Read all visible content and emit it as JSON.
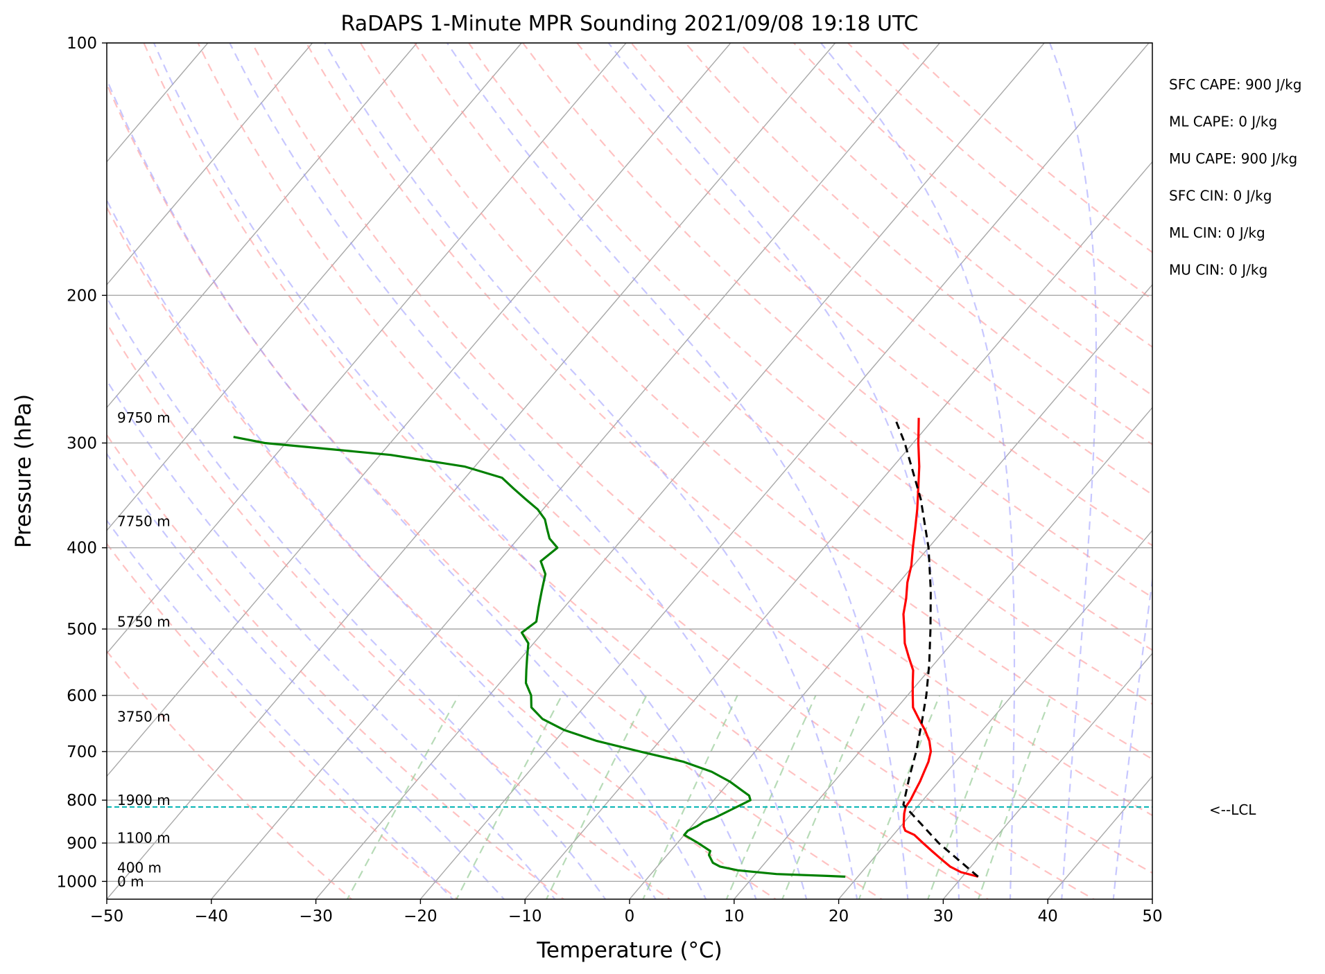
{
  "chart_data": {
    "type": "line",
    "title": "RaDAPS 1-Minute MPR Sounding 2021/09/08 19:18 UTC",
    "xlabel": "Temperature (°C)",
    "ylabel": "Pressure (hPa)",
    "xlim": [
      -50,
      50
    ],
    "ylim": [
      1050,
      100
    ],
    "y_log_scale": true,
    "skew_t": true,
    "x_ticks": [
      -50,
      -40,
      -30,
      -20,
      -10,
      0,
      10,
      20,
      30,
      40,
      50
    ],
    "x_tick_labels": [
      "−50",
      "−40",
      "−30",
      "−20",
      "−10",
      "0",
      "10",
      "20",
      "30",
      "40",
      "50"
    ],
    "y_ticks": [
      1000,
      900,
      800,
      700,
      600,
      500,
      400,
      300,
      200,
      100
    ],
    "y_tick_labels": [
      "1000",
      "900",
      "800",
      "700",
      "600",
      "500",
      "400",
      "300",
      "200",
      "100"
    ],
    "grid": true,
    "series": [
      {
        "color": "#ff0000",
        "pressure": [
          987,
          975,
          960,
          940,
          920,
          900,
          880,
          870,
          860,
          845,
          830,
          815,
          800,
          780,
          760,
          740,
          720,
          700,
          680,
          660,
          640,
          620,
          600,
          580,
          560,
          540,
          520,
          500,
          480,
          460,
          440,
          420,
          400,
          380,
          360,
          340,
          320,
          300,
          280
        ],
        "temperature": [
          31.5,
          29.5,
          28.0,
          26.5,
          25.0,
          23.5,
          22.0,
          20.8,
          20.3,
          19.8,
          19.3,
          18.9,
          18.8,
          18.5,
          18.2,
          17.8,
          17.4,
          16.8,
          15.8,
          14.5,
          13.0,
          11.5,
          10.5,
          9.5,
          8.5,
          7.0,
          5.5,
          4.3,
          3.0,
          2.0,
          0.8,
          -0.2,
          -1.5,
          -2.8,
          -4.2,
          -5.8,
          -7.5,
          -9.5,
          -11.5
        ]
      },
      {
        "color": "#008000",
        "pressure": [
          987,
          985,
          980,
          970,
          960,
          950,
          940,
          930,
          920,
          900,
          880,
          870,
          860,
          850,
          840,
          830,
          820,
          810,
          800,
          790,
          780,
          760,
          740,
          720,
          700,
          680,
          660,
          640,
          620,
          600,
          580,
          560,
          540,
          520,
          505,
          490,
          470,
          450,
          430,
          415,
          400,
          390,
          380,
          370,
          360,
          350,
          340,
          330,
          320,
          310,
          300,
          295
        ],
        "dewpoint": [
          18.8,
          17.0,
          12.0,
          8.0,
          6.0,
          5.0,
          4.5,
          4.0,
          3.8,
          2.0,
          0.0,
          0.0,
          0.5,
          0.8,
          1.5,
          2.0,
          2.5,
          3.0,
          3.5,
          3.0,
          2.0,
          0.0,
          -2.5,
          -6.0,
          -11.0,
          -16.0,
          -20.0,
          -23.0,
          -25.0,
          -26.0,
          -27.5,
          -28.5,
          -29.5,
          -30.5,
          -32.0,
          -31.5,
          -32.5,
          -33.5,
          -34.5,
          -36.0,
          -35.5,
          -37.0,
          -38.0,
          -39.0,
          -40.5,
          -42.5,
          -44.5,
          -46.5,
          -51.0,
          -59.0,
          -72.0,
          -75.5
        ]
      },
      {
        "color": "#000000",
        "pressure": [
          987,
          900,
          810,
          750,
          700,
          650,
          600,
          550,
          500,
          450,
          400,
          350,
          300,
          280
        ],
        "temperature": [
          31.5,
          25.0,
          18.5,
          16.8,
          15.4,
          13.7,
          11.8,
          9.5,
          6.8,
          3.7,
          0.0,
          -4.7,
          -10.8,
          -13.8
        ]
      }
    ],
    "lcl": {
      "pressure": 815,
      "label": "<--LCL"
    },
    "height_labels": [
      {
        "label": "9750 m",
        "pressure": 280
      },
      {
        "label": "7750 m",
        "pressure": 372
      },
      {
        "label": "5750 m",
        "pressure": 490
      },
      {
        "label": "3750 m",
        "pressure": 636
      },
      {
        "label": "1900 m",
        "pressure": 800
      },
      {
        "label": "1100 m",
        "pressure": 887
      },
      {
        "label": "400 m",
        "pressure": 963
      },
      {
        "label": "0 m",
        "pressure": 1000
      }
    ],
    "annotations": [
      "SFC CAPE: 900 J/kg",
      "ML CAPE: 0 J/kg",
      "MU CAPE: 900 J/kg",
      "SFC CIN: 0 J/kg",
      "ML CIN: 0 J/kg",
      "MU CIN: 0 J/kg"
    ],
    "background_line_colors": {
      "isotherms": "#a8a8a8",
      "dry_adiabats": "#ff9999",
      "moist_adiabats": "#9999ff",
      "mixing_ratio": "#99cc99",
      "lcl_line": "#00b3b3"
    }
  }
}
